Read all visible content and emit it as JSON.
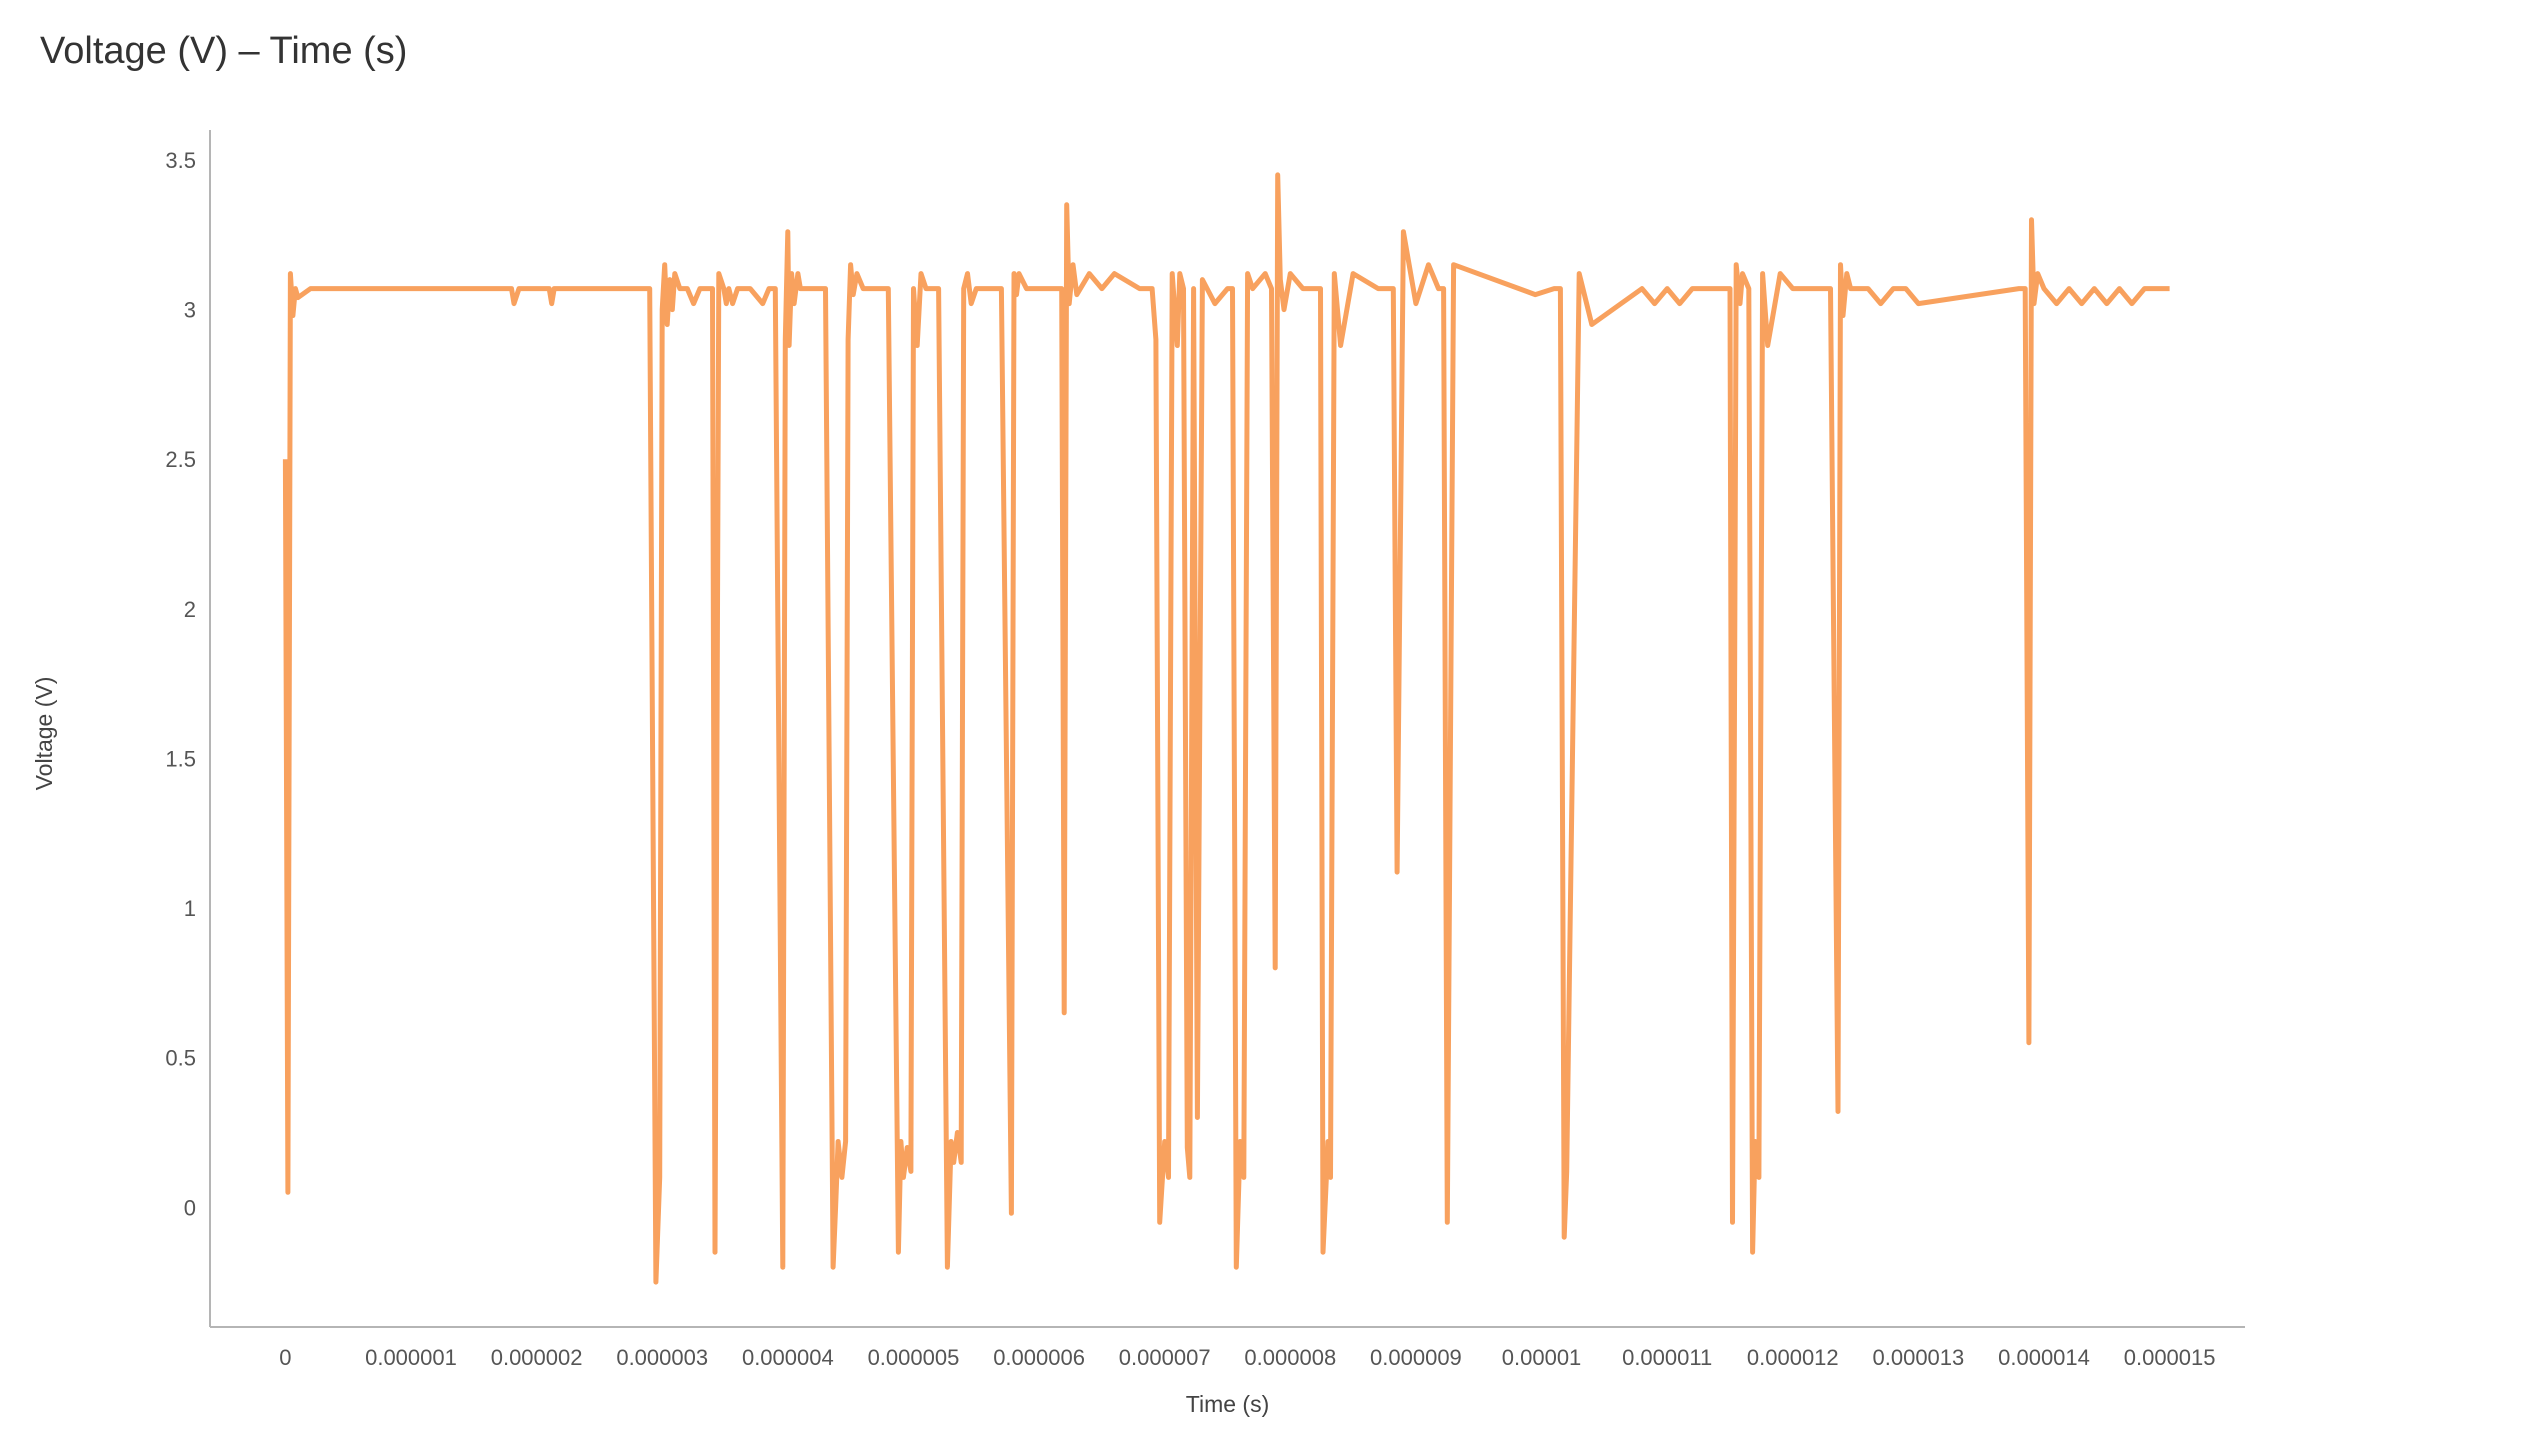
{
  "title": "Voltage (V) – Time (s)",
  "chart_data": {
    "type": "line",
    "title": "Voltage (V) – Time (s)",
    "xlabel": "Time (s)",
    "ylabel": "Voltage (V)",
    "xlim": [
      -6e-07,
      1.56e-05
    ],
    "ylim": [
      -0.4,
      3.6
    ],
    "x_ticks": [
      0,
      1e-06,
      2e-06,
      3e-06,
      4e-06,
      5e-06,
      6e-06,
      7e-06,
      8e-06,
      9e-06,
      1e-05,
      1.1e-05,
      1.2e-05,
      1.3e-05,
      1.4e-05,
      1.5e-05
    ],
    "x_tick_labels": [
      "0",
      "0.000001",
      "0.000002",
      "0.000003",
      "0.000004",
      "0.000005",
      "0.000006",
      "0.000007",
      "0.000008",
      "0.000009",
      "0.00001",
      "0.000011",
      "0.000012",
      "0.000013",
      "0.000014",
      "0.000015"
    ],
    "y_ticks": [
      0,
      0.5,
      1,
      1.5,
      2,
      2.5,
      3,
      3.5
    ],
    "y_tick_labels": [
      "0",
      "0.5",
      "1",
      "1.5",
      "2",
      "2.5",
      "3",
      "3.5"
    ],
    "grid": false,
    "line_color": "#F8A15E",
    "series": [
      {
        "x": [
          0,
          2e-08,
          4e-08,
          6e-08,
          8e-08,
          1e-07,
          2e-07,
          1.8e-06,
          1.82e-06,
          1.86e-06,
          1.9e-06,
          2.1e-06,
          2.12e-06,
          2.14e-06,
          2.9e-06,
          2.95e-06,
          2.98e-06,
          3e-06,
          3.02e-06,
          3.04e-06,
          3.06e-06,
          3.08e-06,
          3.1e-06,
          3.14e-06,
          3.2e-06,
          3.25e-06,
          3.3e-06,
          3.4e-06,
          3.42e-06,
          3.45e-06,
          3.49e-06,
          3.51e-06,
          3.53e-06,
          3.56e-06,
          3.6e-06,
          3.7e-06,
          3.8e-06,
          3.85e-06,
          3.9e-06,
          3.96e-06,
          3.98e-06,
          4e-06,
          4.01e-06,
          4.03e-06,
          4.05e-06,
          4.08e-06,
          4.1e-06,
          4.3e-06,
          4.36e-06,
          4.38e-06,
          4.4e-06,
          4.43e-06,
          4.46e-06,
          4.48e-06,
          4.5e-06,
          4.52e-06,
          4.55e-06,
          4.6e-06,
          4.7e-06,
          4.8e-06,
          4.88e-06,
          4.9e-06,
          4.92e-06,
          4.95e-06,
          4.98e-06,
          5e-06,
          5.03e-06,
          5.06e-06,
          5.1e-06,
          5.2e-06,
          5.27e-06,
          5.3e-06,
          5.32e-06,
          5.35e-06,
          5.38e-06,
          5.4e-06,
          5.43e-06,
          5.46e-06,
          5.5e-06,
          5.6e-06,
          5.7e-06,
          5.78e-06,
          5.8e-06,
          5.82e-06,
          5.84e-06,
          5.9e-06,
          6e-06,
          6.1e-06,
          6.18e-06,
          6.2e-06,
          6.22e-06,
          6.24e-06,
          6.27e-06,
          6.3e-06,
          6.4e-06,
          6.5e-06,
          6.6e-06,
          6.8e-06,
          6.9e-06,
          6.93e-06,
          6.96e-06,
          7e-06,
          7.03e-06,
          7.06e-06,
          7.1e-06,
          7.12e-06,
          7.15e-06,
          7.18e-06,
          7.2e-06,
          7.23e-06,
          7.26e-06,
          7.3e-06,
          7.4e-06,
          7.5e-06,
          7.54e-06,
          7.57e-06,
          7.6e-06,
          7.63e-06,
          7.66e-06,
          7.7e-06,
          7.8e-06,
          7.85e-06,
          7.88e-06,
          7.9e-06,
          7.92e-06,
          7.95e-06,
          8e-06,
          8.1e-06,
          8.2e-06,
          8.24e-06,
          8.26e-06,
          8.3e-06,
          8.32e-06,
          8.35e-06,
          8.4e-06,
          8.5e-06,
          8.7e-06,
          8.78e-06,
          8.8e-06,
          8.82e-06,
          8.85e-06,
          8.9e-06,
          9e-06,
          9.1e-06,
          9.18e-06,
          9.2e-06,
          9.22e-06,
          9.25e-06,
          9.3e-06,
          9.95e-06,
          1.01e-05,
          1.012e-05,
          1.015e-05,
          1.018e-05,
          1.02e-05,
          1.03e-05,
          1.04e-05,
          1.08e-05,
          1.09e-05,
          1.1e-05,
          1.11e-05,
          1.12e-05,
          1.14e-05,
          1.15e-05,
          1.152e-05,
          1.155e-05,
          1.158e-05,
          1.16e-05,
          1.165e-05,
          1.168e-05,
          1.17e-05,
          1.173e-05,
          1.176e-05,
          1.18e-05,
          1.19e-05,
          1.2e-05,
          1.23e-05,
          1.236e-05,
          1.238e-05,
          1.24e-05,
          1.243e-05,
          1.246e-05,
          1.25e-05,
          1.26e-05,
          1.27e-05,
          1.28e-05,
          1.29e-05,
          1.3e-05,
          1.38e-05,
          1.385e-05,
          1.388e-05,
          1.39e-05,
          1.392e-05,
          1.395e-05,
          1.4e-05,
          1.41e-05,
          1.42e-05,
          1.43e-05,
          1.44e-05,
          1.45e-05,
          1.46e-05,
          1.47e-05,
          1.48e-05,
          1.5e-05
        ],
        "y": [
          2.5,
          0.05,
          3.12,
          2.98,
          3.07,
          3.04,
          3.07,
          3.07,
          3.02,
          3.07,
          3.07,
          3.07,
          3.02,
          3.07,
          3.07,
          -0.25,
          0.1,
          3.0,
          3.15,
          2.95,
          3.1,
          3.0,
          3.12,
          3.07,
          3.07,
          3.02,
          3.07,
          3.07,
          -0.15,
          3.12,
          3.07,
          3.02,
          3.07,
          3.02,
          3.07,
          3.07,
          3.02,
          3.07,
          3.07,
          -0.2,
          2.9,
          3.26,
          2.88,
          3.12,
          3.02,
          3.12,
          3.07,
          3.07,
          -0.2,
          0.0,
          0.22,
          0.1,
          0.22,
          2.9,
          3.15,
          3.05,
          3.12,
          3.07,
          3.07,
          3.07,
          -0.15,
          0.22,
          0.1,
          0.2,
          0.12,
          3.07,
          2.88,
          3.12,
          3.07,
          3.07,
          -0.2,
          0.22,
          0.15,
          0.25,
          0.15,
          3.07,
          3.12,
          3.02,
          3.07,
          3.07,
          3.07,
          -0.02,
          3.12,
          3.05,
          3.12,
          3.07,
          3.07,
          3.07,
          3.07,
          0.65,
          3.35,
          3.02,
          3.15,
          3.05,
          3.12,
          3.07,
          3.12,
          3.07,
          3.07,
          2.9,
          -0.05,
          0.22,
          0.1,
          3.12,
          2.88,
          3.12,
          3.07,
          0.2,
          0.1,
          3.07,
          0.3,
          3.1,
          3.02,
          3.07,
          3.07,
          -0.2,
          0.22,
          0.1,
          3.12,
          3.07,
          3.12,
          3.07,
          0.8,
          3.45,
          3.1,
          3.0,
          3.12,
          3.07,
          3.07,
          3.07,
          -0.15,
          0.22,
          0.1,
          3.12,
          2.88,
          3.12,
          3.07,
          3.07,
          3.07,
          3.07,
          1.12,
          3.26,
          3.02,
          3.15,
          3.07,
          3.07,
          3.07,
          -0.05,
          3.15,
          3.05,
          3.07,
          3.07,
          3.07,
          -0.1,
          0.12,
          3.12,
          2.95,
          3.07,
          3.02,
          3.07,
          3.02,
          3.07,
          3.07,
          3.07,
          -0.05,
          3.15,
          3.02,
          3.12,
          3.07,
          -0.15,
          0.22,
          0.1,
          3.12,
          2.88,
          3.12,
          3.07,
          3.07,
          0.32,
          3.15,
          2.98,
          3.12,
          3.07,
          3.07,
          3.07,
          3.02,
          3.07,
          3.07,
          3.02,
          3.07,
          3.07,
          0.55,
          3.3,
          3.02,
          3.12,
          3.07,
          3.02,
          3.07,
          3.02,
          3.07,
          3.02,
          3.07,
          3.02,
          3.07,
          3.07
        ]
      }
    ]
  }
}
